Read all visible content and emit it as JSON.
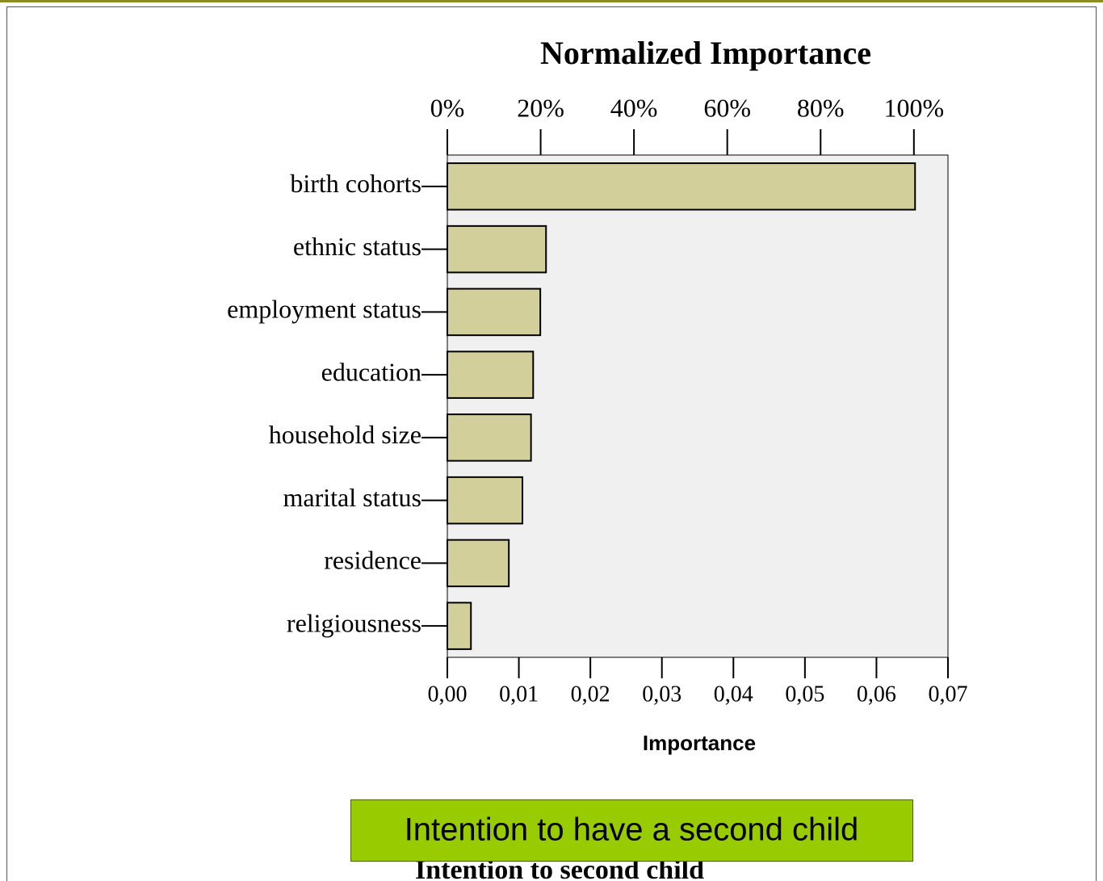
{
  "chart_data": {
    "type": "bar",
    "orientation": "horizontal",
    "title": "Normalized Importance",
    "xlabel": "Importance",
    "categories": [
      "birth cohorts",
      "ethnic status",
      "employment status",
      "education",
      "household size",
      "marital status",
      "residence",
      "religiousness"
    ],
    "values": [
      0.0654,
      0.0138,
      0.013,
      0.012,
      0.0117,
      0.0105,
      0.0086,
      0.0033
    ],
    "color": "#d3cf9a",
    "xlim": [
      0,
      0.07
    ],
    "xticks": [
      {
        "value": 0,
        "label": "0,00"
      },
      {
        "value": 0.01,
        "label": "0,01"
      },
      {
        "value": 0.02,
        "label": "0,02"
      },
      {
        "value": 0.03,
        "label": "0,03"
      },
      {
        "value": 0.04,
        "label": "0,04"
      },
      {
        "value": 0.05,
        "label": "0,05"
      },
      {
        "value": 0.06,
        "label": "0,06"
      },
      {
        "value": 0.07,
        "label": "0,07"
      }
    ],
    "x2lim": [
      0,
      107.3
    ],
    "x2ticks": [
      {
        "value": 0,
        "label": "0%"
      },
      {
        "value": 20,
        "label": "20%"
      },
      {
        "value": 40,
        "label": "40%"
      },
      {
        "value": 60,
        "label": "60%"
      },
      {
        "value": 80,
        "label": "80%"
      },
      {
        "value": 100,
        "label": "100%"
      }
    ],
    "plot_background": "#f0f0f0"
  },
  "caption": "Intention to have a second child",
  "hidden_caption": "Intention to second child"
}
